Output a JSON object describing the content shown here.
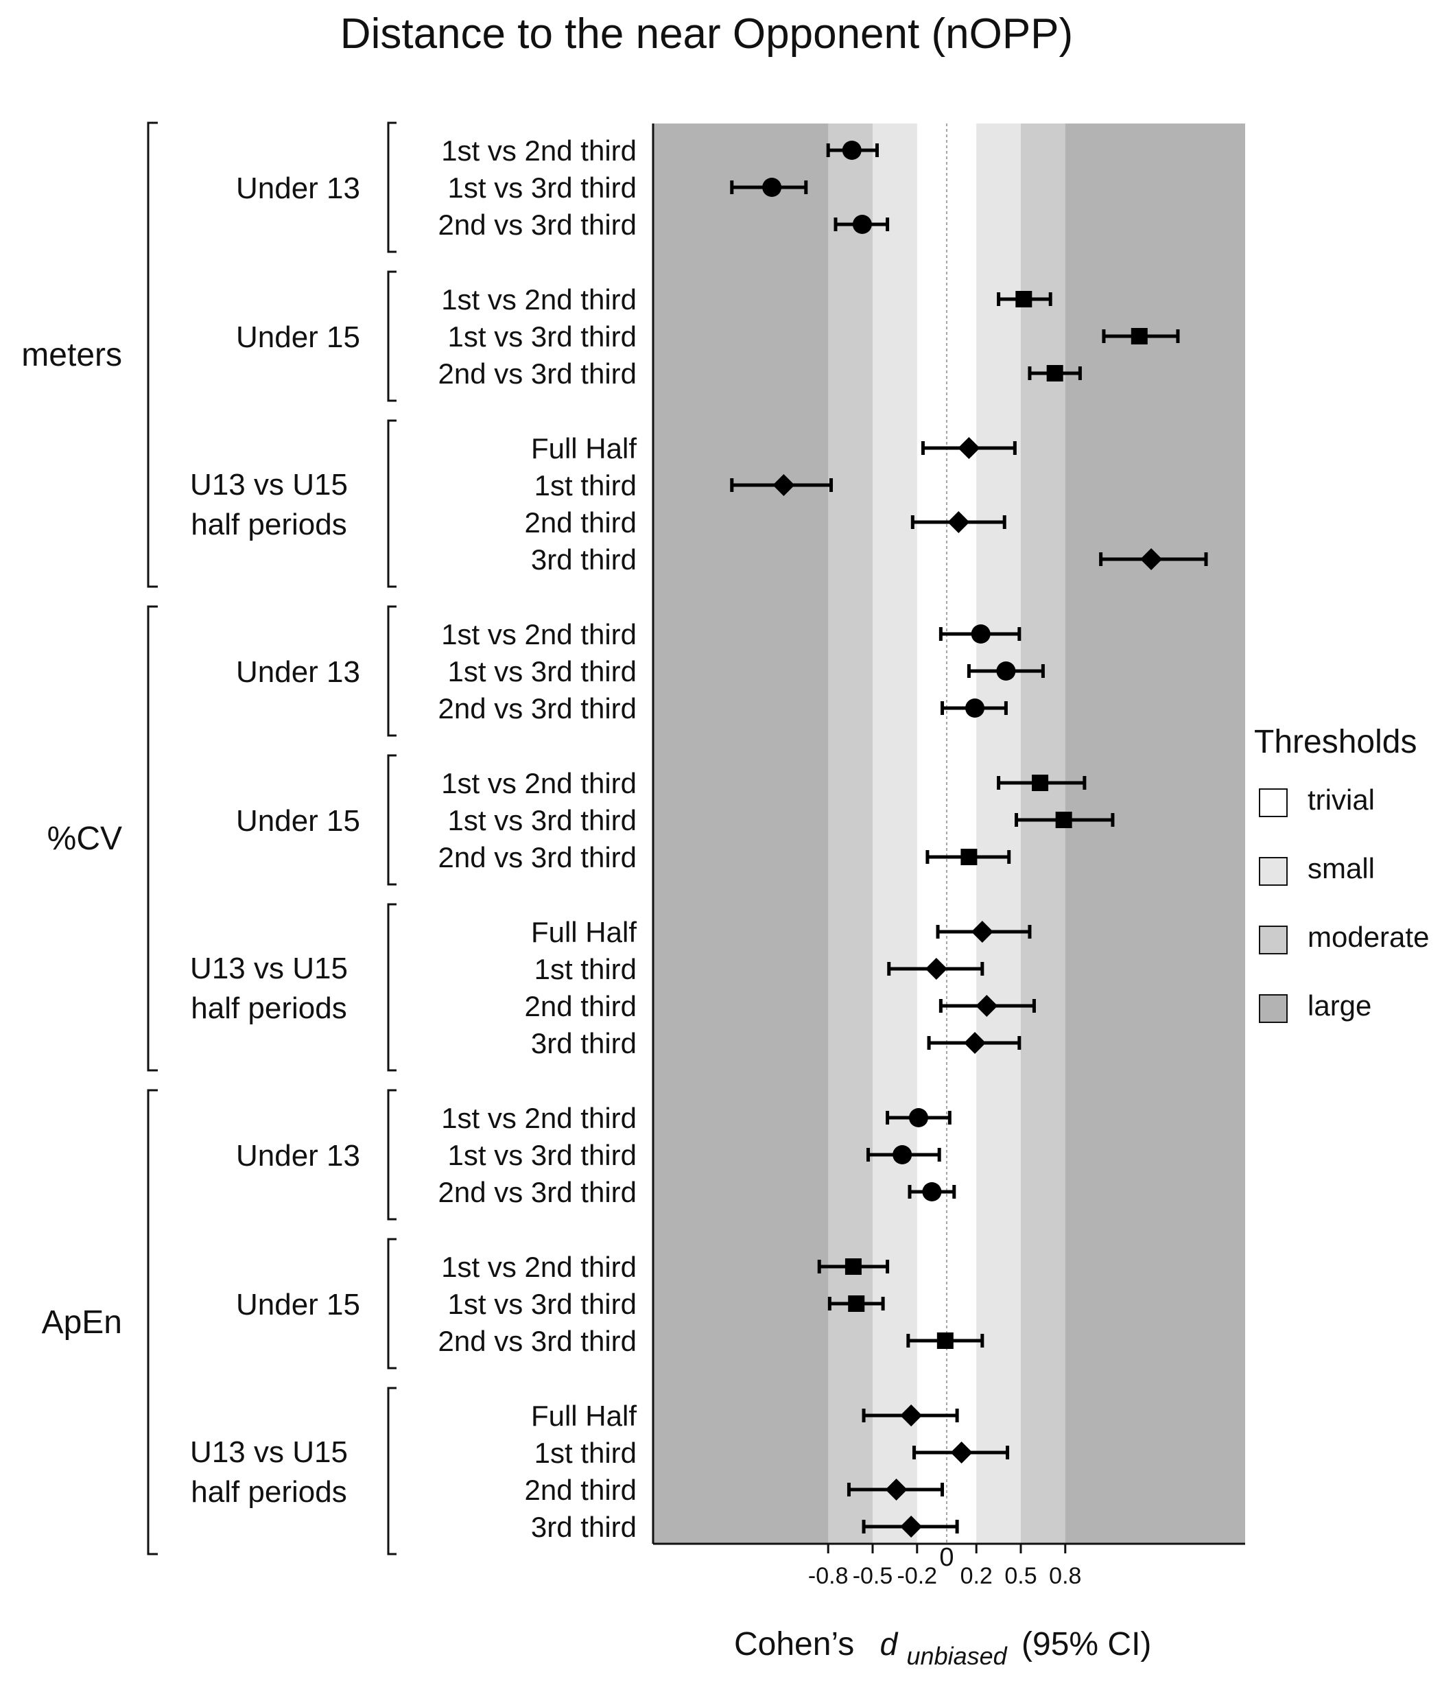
{
  "chart_data": {
    "type": "forest",
    "title": "Distance to the near Opponent (nOPP)",
    "xlabel": {
      "prefix": "Cohen’s",
      "symbol": "d",
      "subscript": "unbiased",
      "suffix": "(95% CI)"
    },
    "xlim": [
      -1.9,
      2.05
    ],
    "x_ticks": [
      {
        "value": -0.8,
        "label": "-0.8"
      },
      {
        "value": -0.5,
        "label": "-0.5"
      },
      {
        "value": -0.2,
        "label": "-0.2"
      },
      {
        "value": 0.2,
        "label": "0.2"
      },
      {
        "value": 0.5,
        "label": "0.5"
      },
      {
        "value": 0.8,
        "label": "0.8"
      }
    ],
    "zero_label": "0",
    "thresholds": [
      {
        "name": "trivial",
        "abs_min": 0,
        "abs_max": 0.2,
        "color": "#ffffff"
      },
      {
        "name": "small",
        "abs_min": 0.2,
        "abs_max": 0.5,
        "color": "#e6e6e6"
      },
      {
        "name": "moderate",
        "abs_min": 0.5,
        "abs_max": 0.8,
        "color": "#cccccc"
      },
      {
        "name": "large",
        "abs_min": 0.8,
        "abs_max": null,
        "color": "#b3b3b3"
      }
    ],
    "legend": {
      "title": "Thresholds",
      "position": "right"
    },
    "metrics": [
      {
        "name": "meters",
        "groups": [
          {
            "name": [
              "Under 13"
            ],
            "marker": "circle",
            "rows": [
              {
                "label": "1st vs 2nd third",
                "est": -0.64,
                "lo": -0.8,
                "hi": -0.47
              },
              {
                "label": "1st vs 3rd third",
                "est": -1.18,
                "lo": -1.45,
                "hi": -0.95
              },
              {
                "label": "2nd vs 3rd third",
                "est": -0.57,
                "lo": -0.75,
                "hi": -0.4
              }
            ]
          },
          {
            "name": [
              "Under 15"
            ],
            "marker": "square",
            "rows": [
              {
                "label": "1st vs 2nd third",
                "est": 0.52,
                "lo": 0.35,
                "hi": 0.7
              },
              {
                "label": "1st vs 3rd third",
                "est": 1.3,
                "lo": 1.06,
                "hi": 1.56
              },
              {
                "label": "2nd vs 3rd third",
                "est": 0.73,
                "lo": 0.56,
                "hi": 0.9
              }
            ]
          },
          {
            "name": [
              "U13 vs U15",
              "half periods"
            ],
            "marker": "diamond",
            "rows": [
              {
                "label": "Full Half",
                "est": 0.15,
                "lo": -0.16,
                "hi": 0.46
              },
              {
                "label": "1st third",
                "est": -1.1,
                "lo": -1.45,
                "hi": -0.78
              },
              {
                "label": "2nd third",
                "est": 0.08,
                "lo": -0.23,
                "hi": 0.39
              },
              {
                "label": "3rd third",
                "est": 1.38,
                "lo": 1.04,
                "hi": 1.75
              }
            ]
          }
        ]
      },
      {
        "name": "%CV",
        "groups": [
          {
            "name": [
              "Under 13"
            ],
            "marker": "circle",
            "rows": [
              {
                "label": "1st vs 2nd third",
                "est": 0.23,
                "lo": -0.04,
                "hi": 0.49
              },
              {
                "label": "1st vs 3rd third",
                "est": 0.4,
                "lo": 0.15,
                "hi": 0.65
              },
              {
                "label": "2nd vs 3rd third",
                "est": 0.19,
                "lo": -0.03,
                "hi": 0.4
              }
            ]
          },
          {
            "name": [
              "Under 15"
            ],
            "marker": "square",
            "rows": [
              {
                "label": "1st vs 2nd third",
                "est": 0.63,
                "lo": 0.35,
                "hi": 0.93
              },
              {
                "label": "1st vs 3rd third",
                "est": 0.79,
                "lo": 0.47,
                "hi": 1.12
              },
              {
                "label": "2nd vs 3rd third",
                "est": 0.15,
                "lo": -0.13,
                "hi": 0.42
              }
            ]
          },
          {
            "name": [
              "U13 vs U15",
              "half periods"
            ],
            "marker": "diamond",
            "rows": [
              {
                "label": "Full Half",
                "est": 0.24,
                "lo": -0.06,
                "hi": 0.56
              },
              {
                "label": "1st third",
                "est": -0.07,
                "lo": -0.39,
                "hi": 0.24
              },
              {
                "label": "2nd third",
                "est": 0.27,
                "lo": -0.04,
                "hi": 0.59
              },
              {
                "label": "3rd third",
                "est": 0.19,
                "lo": -0.12,
                "hi": 0.49
              }
            ]
          }
        ]
      },
      {
        "name": "ApEn",
        "groups": [
          {
            "name": [
              "Under 13"
            ],
            "marker": "circle",
            "rows": [
              {
                "label": "1st vs 2nd third",
                "est": -0.19,
                "lo": -0.4,
                "hi": 0.02
              },
              {
                "label": "1st vs 3rd third",
                "est": -0.3,
                "lo": -0.53,
                "hi": -0.05
              },
              {
                "label": "2nd vs 3rd third",
                "est": -0.1,
                "lo": -0.25,
                "hi": 0.05
              }
            ]
          },
          {
            "name": [
              "Under 15"
            ],
            "marker": "square",
            "rows": [
              {
                "label": "1st vs 2nd third",
                "est": -0.63,
                "lo": -0.86,
                "hi": -0.4
              },
              {
                "label": "1st vs 3rd third",
                "est": -0.61,
                "lo": -0.79,
                "hi": -0.43
              },
              {
                "label": "2nd vs 3rd third",
                "est": -0.01,
                "lo": -0.26,
                "hi": 0.24
              }
            ]
          },
          {
            "name": [
              "U13 vs U15",
              "half periods"
            ],
            "marker": "diamond",
            "rows": [
              {
                "label": "Full Half",
                "est": -0.24,
                "lo": -0.56,
                "hi": 0.07
              },
              {
                "label": "1st third",
                "est": 0.1,
                "lo": -0.22,
                "hi": 0.41
              },
              {
                "label": "2nd third",
                "est": -0.34,
                "lo": -0.66,
                "hi": -0.03
              },
              {
                "label": "3rd third",
                "est": -0.24,
                "lo": -0.56,
                "hi": 0.07
              }
            ]
          }
        ]
      }
    ]
  }
}
